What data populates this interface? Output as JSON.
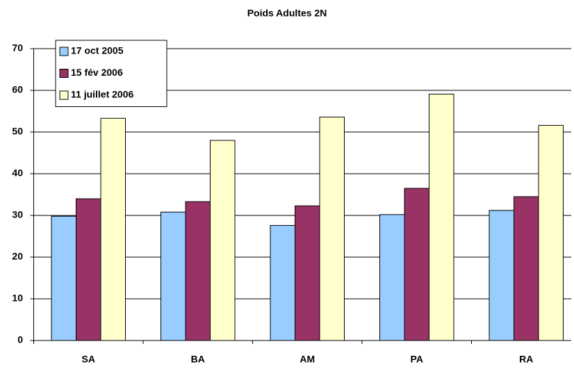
{
  "chart_data": {
    "type": "bar",
    "title": "Poids Adultes 2N",
    "categories": [
      "SA",
      "BA",
      "AM",
      "PA",
      "RA"
    ],
    "series": [
      {
        "name": "17 oct 2005",
        "color": "#99ccff",
        "values": [
          29.8,
          30.8,
          27.6,
          30.2,
          31.2
        ]
      },
      {
        "name": "15 fév 2006",
        "color": "#993366",
        "values": [
          34,
          33.3,
          32.3,
          36.5,
          34.5
        ]
      },
      {
        "name": "11 juillet 2006",
        "color": "#ffffcc",
        "values": [
          53.3,
          48,
          53.6,
          59.1,
          51.6
        ]
      }
    ],
    "ylim": [
      0,
      70
    ],
    "yticks": [
      0,
      10,
      20,
      30,
      40,
      50,
      60,
      70
    ],
    "grid": true,
    "legend": "top-left"
  }
}
